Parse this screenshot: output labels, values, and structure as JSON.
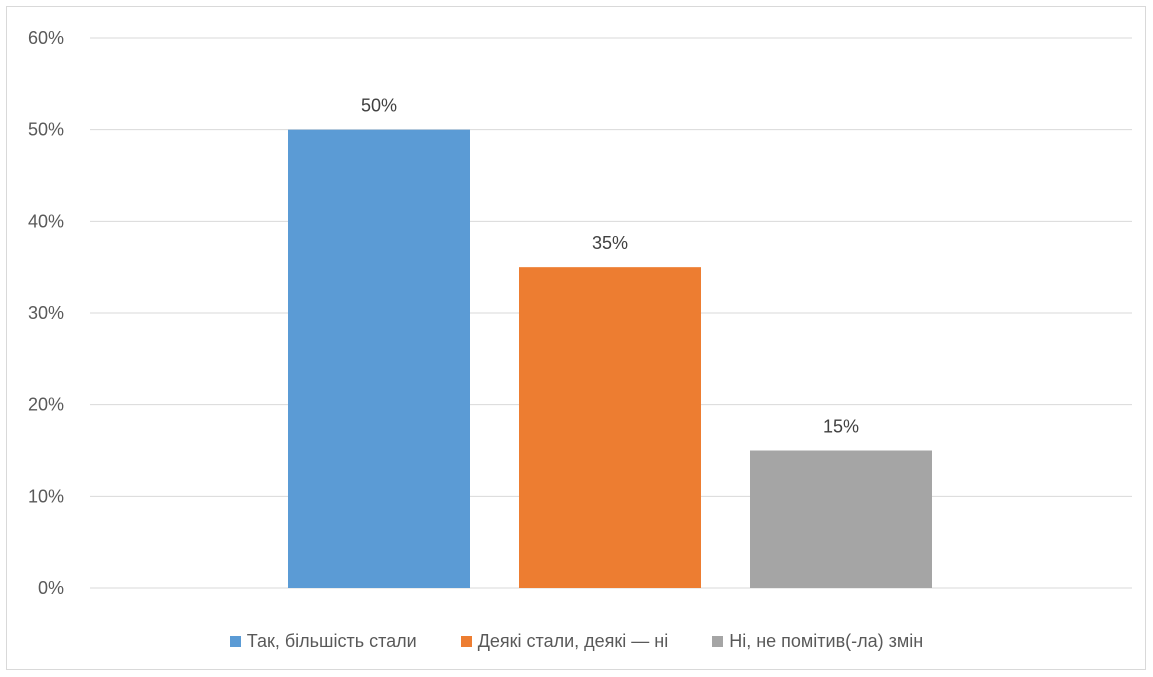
{
  "chart_data": {
    "type": "bar",
    "title": "",
    "xlabel": "",
    "ylabel": "",
    "categories": [
      "Так, більшість стали",
      "Деякі стали, деякі — ні",
      "Ні, не помітив(-ла) змін"
    ],
    "values": [
      50,
      35,
      15
    ],
    "data_labels": [
      "50%",
      "35%",
      "15%"
    ],
    "colors": [
      "#5b9bd5",
      "#ed7d31",
      "#a5a5a5"
    ],
    "ylim": [
      0,
      60
    ],
    "yticks": [
      0,
      10,
      20,
      30,
      40,
      50,
      60
    ],
    "ytick_labels": [
      "0%",
      "10%",
      "20%",
      "30%",
      "40%",
      "50%",
      "60%"
    ],
    "grid": true,
    "legend": {
      "placement": "bottom",
      "entries": [
        "Так, більшість стали",
        "Деякі стали, деякі — ні",
        "Ні, не помітив(-ла) змін"
      ]
    }
  }
}
